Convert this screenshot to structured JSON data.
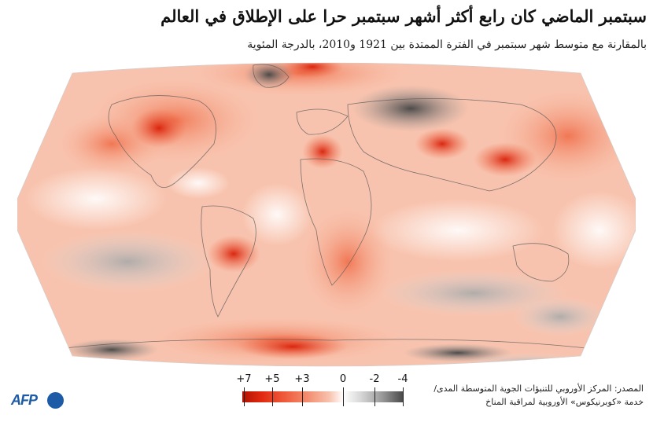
{
  "header": {
    "title": "سبتمبر الماضي كان رابع أكثر أشهر سبتمبر حرا على الإطلاق في العالم",
    "subtitle": "بالمقارنة مع متوسط شهر سبتمبر في الفترة الممتدة بين 1921 و2010، بالدرجة المئوية"
  },
  "legend": {
    "labels": [
      "+7",
      "+5",
      "+3",
      "0",
      "-2",
      "-4"
    ],
    "colors": {
      "hot_max": "#b31200",
      "hot": "#e02a10",
      "warm": "#f38b6c",
      "neutral": "#ffffff",
      "cool": "#9a9a9a",
      "cold": "#4a4a4a"
    }
  },
  "source": {
    "line1": "المصدر: المركز الأوروبي للتنبؤات الجوية المتوسطة المدى/",
    "line2": "خدمة «كوبرنيكوس» الأوروبية لمراقبة المناخ"
  },
  "logo": {
    "text": "AFP",
    "color": "#1d5ba6"
  }
}
